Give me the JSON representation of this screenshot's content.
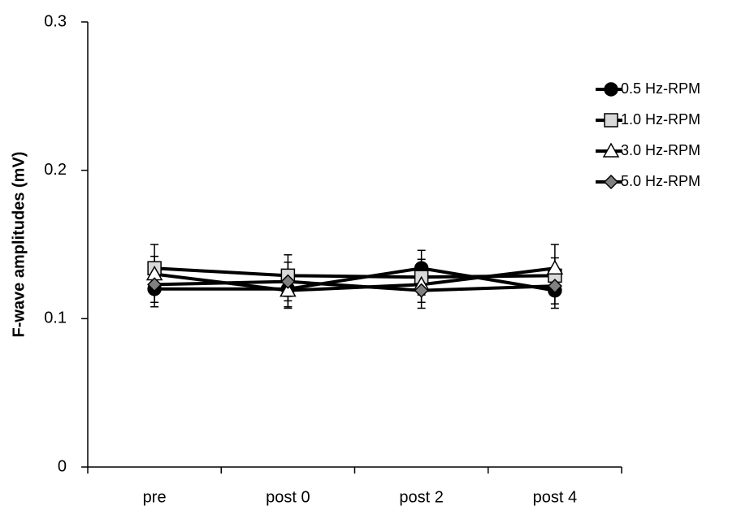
{
  "chart_data": {
    "type": "line",
    "y_label": "F-wave amplitudes (mV)",
    "categories": [
      "pre",
      "post 0",
      "post 2",
      "post 4"
    ],
    "ylim": [
      0,
      0.3
    ],
    "yticks": [
      0,
      0.1,
      0.2,
      0.3
    ],
    "series": [
      {
        "name": "0.5 Hz-RPM",
        "color": "#000000",
        "marker": "circle",
        "marker_fill": "#000000",
        "values": [
          0.12,
          0.12,
          0.134,
          0.119
        ],
        "errors": [
          0.012,
          0.012,
          0.012,
          0.012
        ]
      },
      {
        "name": "1.0 Hz-RPM",
        "color": "#000000",
        "marker": "square",
        "marker_fill": "#d9d9d9",
        "values": [
          0.134,
          0.129,
          0.128,
          0.129
        ],
        "errors": [
          0.016,
          0.014,
          0.012,
          0.012
        ]
      },
      {
        "name": "3.0 Hz-RPM",
        "color": "#000000",
        "marker": "triangle",
        "marker_fill": "#ffffff",
        "values": [
          0.13,
          0.119,
          0.123,
          0.134
        ],
        "errors": [
          0.012,
          0.012,
          0.012,
          0.016
        ]
      },
      {
        "name": "5.0 Hz-RPM",
        "color": "#000000",
        "marker": "diamond",
        "marker_fill": "#808080",
        "values": [
          0.123,
          0.125,
          0.119,
          0.122
        ],
        "errors": [
          0.012,
          0.013,
          0.012,
          0.012
        ]
      }
    ]
  }
}
